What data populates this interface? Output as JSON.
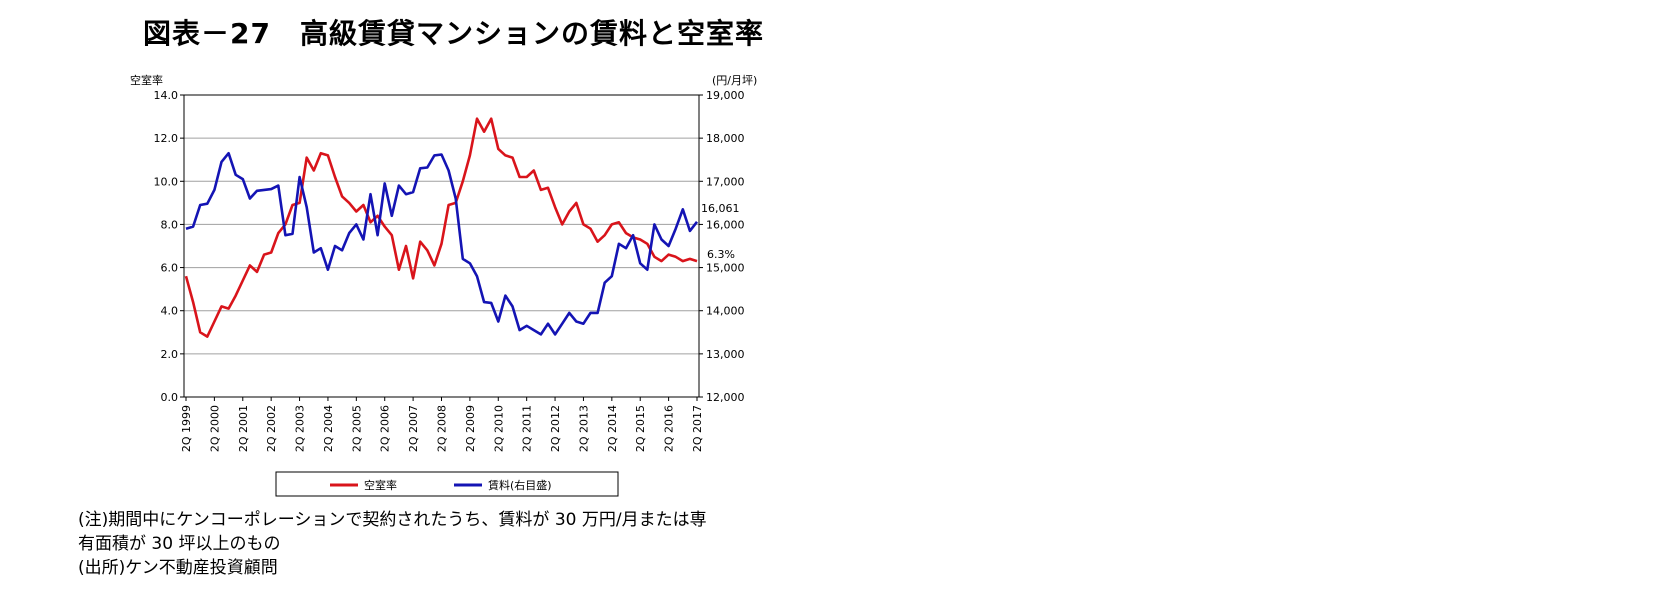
{
  "title": "図表－27　高級賃貸マンションの賃料と空室率",
  "chart_data": {
    "type": "line",
    "left_axis_label": "空室率",
    "right_axis_label": "(円/月坪)",
    "left_ylim": [
      0,
      14
    ],
    "left_ticks": [
      "0.0",
      "2.0",
      "4.0",
      "6.0",
      "8.0",
      "10.0",
      "12.0",
      "14.0"
    ],
    "right_ylim": [
      12000,
      19000
    ],
    "right_ticks": [
      "12,000",
      "13,000",
      "14,000",
      "15,000",
      "16,000",
      "17,000",
      "18,000",
      "19,000"
    ],
    "x_tick_labels": [
      "2Q 1999",
      "2Q 2000",
      "2Q 2001",
      "2Q 2002",
      "2Q 2003",
      "2Q 2004",
      "2Q 2005",
      "2Q 2006",
      "2Q 2007",
      "2Q 2008",
      "2Q 2009",
      "2Q 2010",
      "2Q 2011",
      "2Q 2012",
      "2Q 2013",
      "2Q 2014",
      "2Q 2015",
      "2Q 2016",
      "2Q 2017"
    ],
    "grid": true,
    "legend_position": "bottom",
    "series": [
      {
        "name": "空室率",
        "axis": "left",
        "color": "#d9141b",
        "end_label": "6.3%",
        "values": [
          5.6,
          4.4,
          3.0,
          2.8,
          3.5,
          4.2,
          4.1,
          4.7,
          5.4,
          6.1,
          5.8,
          6.6,
          6.7,
          7.6,
          8.0,
          8.9,
          9.0,
          11.1,
          10.5,
          11.3,
          11.2,
          10.2,
          9.3,
          9.0,
          8.6,
          8.9,
          8.1,
          8.4,
          7.9,
          7.5,
          5.9,
          7.0,
          5.5,
          7.2,
          6.8,
          6.1,
          7.1,
          8.9,
          9.0,
          10.0,
          11.2,
          12.9,
          12.3,
          12.9,
          11.5,
          11.2,
          11.1,
          10.2,
          10.2,
          10.5,
          9.6,
          9.7,
          8.8,
          8.0,
          8.6,
          9.0,
          8.0,
          7.8,
          7.2,
          7.5,
          8.0,
          8.1,
          7.6,
          7.4,
          7.3,
          7.1,
          6.5,
          6.3,
          6.6,
          6.5,
          6.3,
          6.4,
          6.3
        ]
      },
      {
        "name": "賃料(右目盛)",
        "axis": "right",
        "color": "#1414b4",
        "end_label": "16,061",
        "values": [
          15900,
          15950,
          16450,
          16480,
          16800,
          17450,
          17650,
          17150,
          17050,
          16600,
          16780,
          16800,
          16820,
          16900,
          15750,
          15780,
          17100,
          16400,
          15350,
          15450,
          14950,
          15500,
          15400,
          15800,
          16000,
          15650,
          16700,
          15750,
          16950,
          16200,
          16900,
          16700,
          16750,
          17300,
          17320,
          17600,
          17620,
          17250,
          16600,
          15200,
          15100,
          14800,
          14200,
          14180,
          13750,
          14350,
          14100,
          13550,
          13650,
          13550,
          13450,
          13700,
          13450,
          13700,
          13950,
          13750,
          13700,
          13950,
          13950,
          14650,
          14800,
          15550,
          15450,
          15750,
          15100,
          14950,
          16000,
          15650,
          15500,
          15900,
          16350,
          15850,
          16061
        ]
      }
    ]
  },
  "notes": [
    "(注)期間中にケンコーポレーションで契約されたうち、賃料が 30 万円/月または専",
    "有面積が 30 坪以上のもの",
    "(出所)ケン不動産投資顧問"
  ]
}
